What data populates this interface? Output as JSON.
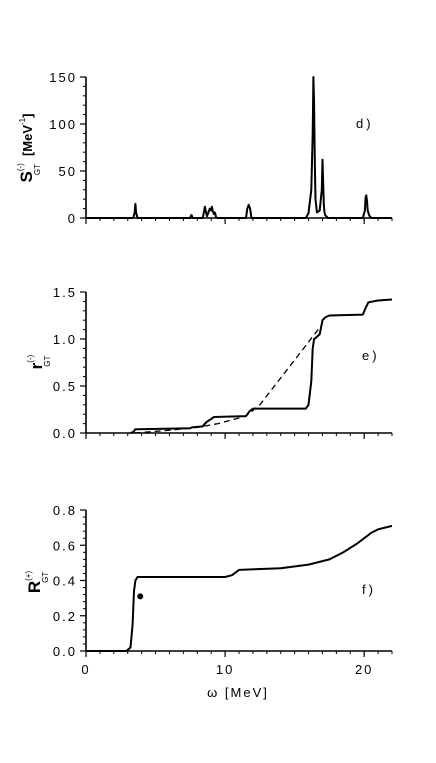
{
  "chart_data": [
    {
      "type": "line",
      "panel_label": "d)",
      "ylabel": {
        "main": "S",
        "superscript": "(-)",
        "subscript": "GT",
        "unit": "[MeV",
        "unit_exp": "-1",
        "unit_close": "]"
      },
      "xlim": [
        0,
        22
      ],
      "ylim": [
        0,
        150
      ],
      "y_ticks": [
        0,
        50,
        100,
        150
      ],
      "y_tick_labels": [
        "0",
        "50",
        "100",
        "150"
      ],
      "x_tick_labels_shown": false,
      "series": [
        {
          "x": [
            0,
            3.4,
            3.5,
            3.55,
            3.6,
            3.7,
            7.5,
            7.55,
            7.6,
            7.65,
            8.4,
            8.5,
            8.55,
            8.6,
            8.7,
            8.8,
            8.9,
            9.0,
            9.05,
            9.1,
            9.2,
            9.25,
            9.3,
            9.35,
            9.4,
            11.5,
            11.6,
            11.7,
            11.8,
            11.9,
            15.8,
            16.0,
            16.2,
            16.3,
            16.35,
            16.4,
            16.45,
            16.5,
            16.6,
            16.8,
            16.95,
            17.0,
            17.05,
            17.1,
            17.15,
            17.2,
            17.4,
            19.9,
            20.05,
            20.1,
            20.15,
            20.2,
            20.25,
            20.35,
            20.5,
            21.0,
            22
          ],
          "y": [
            0,
            0,
            6,
            15,
            6,
            0,
            0,
            3,
            3,
            0,
            0,
            8,
            12,
            8,
            2,
            6,
            10,
            8,
            12,
            8,
            4,
            6,
            4,
            1,
            0,
            0,
            10,
            14,
            10,
            0,
            0,
            5,
            30,
            90,
            150,
            120,
            60,
            20,
            6,
            8,
            30,
            62,
            40,
            15,
            6,
            3,
            0,
            0,
            8,
            22,
            24,
            18,
            8,
            3,
            0,
            0,
            0
          ]
        }
      ]
    },
    {
      "type": "line",
      "panel_label": "e)",
      "ylabel": {
        "main": "r",
        "superscript": "(-)",
        "subscript": "GT"
      },
      "xlim": [
        0,
        22
      ],
      "ylim": [
        0,
        1.5
      ],
      "y_ticks": [
        0,
        0.5,
        1.0,
        1.5
      ],
      "y_tick_labels": [
        "0.0",
        "0.5",
        "1.0",
        "1.5"
      ],
      "x_tick_labels_shown": false,
      "series": [
        {
          "style": "solid",
          "x": [
            3.2,
            3.4,
            3.55,
            3.7,
            7.5,
            7.6,
            8.4,
            8.55,
            8.7,
            9.0,
            9.2,
            11.5,
            11.75,
            12.0,
            15.8,
            16.0,
            16.2,
            16.3,
            16.4,
            16.5,
            16.8,
            17.0,
            17.2,
            17.5,
            19.9,
            20.1,
            20.3,
            21.0,
            22
          ],
          "y": [
            0.0,
            0.01,
            0.04,
            0.04,
            0.05,
            0.06,
            0.07,
            0.1,
            0.12,
            0.15,
            0.17,
            0.18,
            0.23,
            0.26,
            0.26,
            0.3,
            0.55,
            0.9,
            1.0,
            1.01,
            1.05,
            1.2,
            1.23,
            1.25,
            1.26,
            1.33,
            1.39,
            1.41,
            1.42
          ]
        },
        {
          "style": "dashed",
          "x": [
            3.5,
            6.0,
            8.0,
            9.5,
            11.5,
            12.5,
            17.0
          ],
          "y": [
            0.0,
            0.03,
            0.06,
            0.1,
            0.18,
            0.3,
            1.16
          ]
        }
      ]
    },
    {
      "type": "line",
      "panel_label": "f)",
      "ylabel": {
        "main": "R",
        "superscript": "(+)",
        "subscript": "GT"
      },
      "xlabel": "ω [MeV]",
      "xlim": [
        0,
        22
      ],
      "ylim": [
        0,
        0.8
      ],
      "y_ticks": [
        0,
        0.2,
        0.4,
        0.6,
        0.8
      ],
      "y_tick_labels": [
        "0.0",
        "0.2",
        "0.4",
        "0.6",
        "0.8"
      ],
      "x_ticks": [
        0,
        10,
        20
      ],
      "x_tick_labels": [
        "0",
        "10",
        "20"
      ],
      "x_tick_labels_shown": true,
      "series": [
        {
          "style": "solid",
          "x": [
            0,
            2.9,
            3.2,
            3.35,
            3.45,
            3.55,
            3.7,
            4.0,
            10.0,
            10.5,
            11.0,
            14.0,
            16.0,
            17.5,
            18.5,
            19.5,
            20.0,
            20.5,
            21.0,
            21.5,
            22
          ],
          "y": [
            0,
            0,
            0.02,
            0.15,
            0.34,
            0.4,
            0.42,
            0.42,
            0.42,
            0.43,
            0.46,
            0.47,
            0.49,
            0.52,
            0.56,
            0.61,
            0.64,
            0.67,
            0.69,
            0.7,
            0.71
          ]
        }
      ],
      "markers": [
        {
          "x": 3.9,
          "y": 0.31
        }
      ]
    }
  ]
}
